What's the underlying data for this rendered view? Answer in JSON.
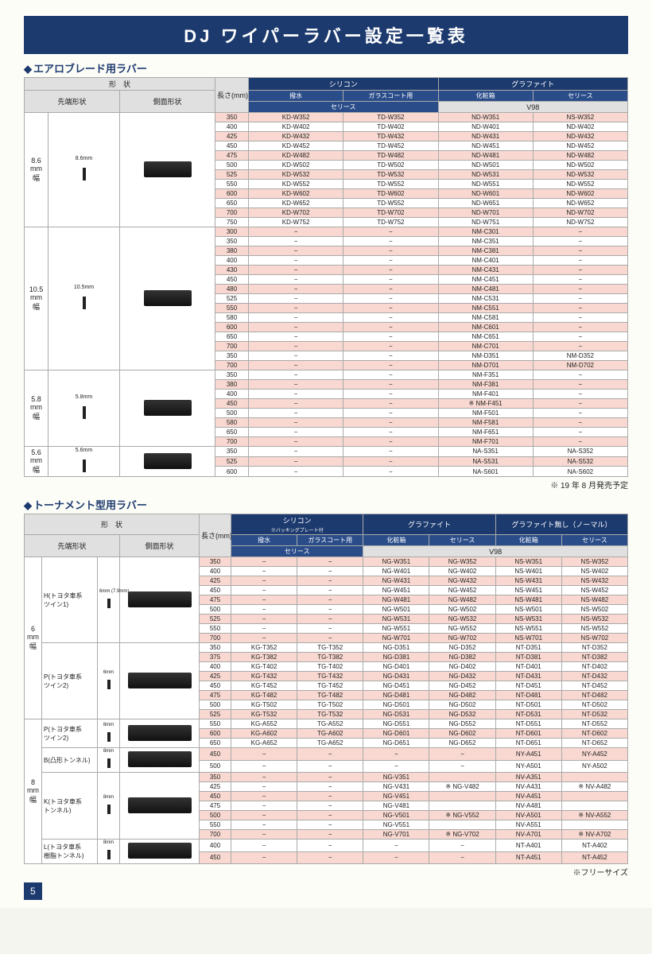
{
  "title": "DJ  ワイパーラバー設定一覧表",
  "section1": {
    "heading": "エアロブレード用ラバー",
    "topHeaders": {
      "shape": "形　状",
      "silicone": "シリコン",
      "graphite": "グラファイト"
    },
    "sub1": {
      "tip": "先端形状",
      "side": "側面形状",
      "len": "長さ(mm)",
      "repel": "撥水",
      "glass": "ガラスコート用",
      "box": "化粧箱",
      "series2": "セリース"
    },
    "sub2": {
      "series": "セリース",
      "v98": "V98"
    },
    "groups": [
      {
        "label": "8.6\nmm\n幅",
        "dim": "8.6mm"
      },
      {
        "label": "10.5\nmm\n幅",
        "dim": "10.5mm"
      },
      {
        "label": "5.8\nmm\n幅",
        "dim": "5.8mm"
      },
      {
        "label": "5.6\nmm\n幅",
        "dim": "5.6mm"
      }
    ],
    "rows": [
      {
        "g": 0,
        "len": "350",
        "c": [
          "KD-W352",
          "TD-W352",
          "ND-W351",
          "NS-W352"
        ],
        "p": 1
      },
      {
        "g": 0,
        "len": "400",
        "c": [
          "KD-W402",
          "TD-W402",
          "ND-W401",
          "ND-W402"
        ],
        "p": 0
      },
      {
        "g": 0,
        "len": "425",
        "c": [
          "KD-W432",
          "TD-W432",
          "ND-W431",
          "ND-W432"
        ],
        "p": 1
      },
      {
        "g": 0,
        "len": "450",
        "c": [
          "KD-W452",
          "TD-W452",
          "ND-W451",
          "ND-W452"
        ],
        "p": 0
      },
      {
        "g": 0,
        "len": "475",
        "c": [
          "KD-W482",
          "TD-W482",
          "ND-W481",
          "ND-W482"
        ],
        "p": 1
      },
      {
        "g": 0,
        "len": "500",
        "c": [
          "KD-W502",
          "TD-W502",
          "ND-W501",
          "ND-W502"
        ],
        "p": 0
      },
      {
        "g": 0,
        "len": "525",
        "c": [
          "KD-W532",
          "TD-W532",
          "ND-W531",
          "ND-W532"
        ],
        "p": 1
      },
      {
        "g": 0,
        "len": "550",
        "c": [
          "KD-W552",
          "TD-W552",
          "ND-W551",
          "ND-W552"
        ],
        "p": 0
      },
      {
        "g": 0,
        "len": "600",
        "c": [
          "KD-W602",
          "TD-W602",
          "ND-W601",
          "ND-W602"
        ],
        "p": 1
      },
      {
        "g": 0,
        "len": "650",
        "c": [
          "KD-W652",
          "TD-W552",
          "ND-W651",
          "ND-W652"
        ],
        "p": 0
      },
      {
        "g": 0,
        "len": "700",
        "c": [
          "KD-W702",
          "TD-W702",
          "ND-W701",
          "ND-W702"
        ],
        "p": 1
      },
      {
        "g": 0,
        "len": "750",
        "c": [
          "KD-W752",
          "TD-W752",
          "ND-W751",
          "ND-W752"
        ],
        "p": 0
      },
      {
        "g": 1,
        "len": "300",
        "c": [
          "−",
          "−",
          "NM-C301",
          "−"
        ],
        "p": 1
      },
      {
        "g": 1,
        "len": "350",
        "c": [
          "−",
          "−",
          "NM-C351",
          "−"
        ],
        "p": 0
      },
      {
        "g": 1,
        "len": "380",
        "c": [
          "−",
          "−",
          "NM-C381",
          "−"
        ],
        "p": 1
      },
      {
        "g": 1,
        "len": "400",
        "c": [
          "−",
          "−",
          "NM-C401",
          "−"
        ],
        "p": 0
      },
      {
        "g": 1,
        "len": "430",
        "c": [
          "−",
          "−",
          "NM-C431",
          "−"
        ],
        "p": 1
      },
      {
        "g": 1,
        "len": "450",
        "c": [
          "−",
          "−",
          "NM-C451",
          "−"
        ],
        "p": 0
      },
      {
        "g": 1,
        "len": "480",
        "c": [
          "−",
          "−",
          "NM-C481",
          "−"
        ],
        "p": 1
      },
      {
        "g": 1,
        "len": "525",
        "c": [
          "−",
          "−",
          "NM-C531",
          "−"
        ],
        "p": 0
      },
      {
        "g": 1,
        "len": "550",
        "c": [
          "−",
          "−",
          "NM-C551",
          "−"
        ],
        "p": 1
      },
      {
        "g": 1,
        "len": "580",
        "c": [
          "−",
          "−",
          "NM-C581",
          "−"
        ],
        "p": 0
      },
      {
        "g": 1,
        "len": "600",
        "c": [
          "−",
          "−",
          "NM-C601",
          "−"
        ],
        "p": 1
      },
      {
        "g": 1,
        "len": "650",
        "c": [
          "−",
          "−",
          "NM-C651",
          "−"
        ],
        "p": 0
      },
      {
        "g": 1,
        "len": "700",
        "c": [
          "−",
          "−",
          "NM-C701",
          "−"
        ],
        "p": 1
      },
      {
        "g": 1,
        "len": "350",
        "c": [
          "−",
          "−",
          "NM-D351",
          "NM-D352"
        ],
        "p": 0
      },
      {
        "g": 1,
        "len": "700",
        "c": [
          "−",
          "−",
          "NM-D701",
          "NM-D702"
        ],
        "p": 1
      },
      {
        "g": 2,
        "len": "350",
        "c": [
          "−",
          "−",
          "NM-F351",
          "−"
        ],
        "p": 0
      },
      {
        "g": 2,
        "len": "380",
        "c": [
          "−",
          "−",
          "NM-F381",
          "−"
        ],
        "p": 1
      },
      {
        "g": 2,
        "len": "400",
        "c": [
          "−",
          "−",
          "NM-F401",
          "−"
        ],
        "p": 0
      },
      {
        "g": 2,
        "len": "450",
        "c": [
          "−",
          "−",
          "※ NM-F451",
          "−"
        ],
        "p": 1
      },
      {
        "g": 2,
        "len": "500",
        "c": [
          "−",
          "−",
          "NM-F501",
          "−"
        ],
        "p": 0
      },
      {
        "g": 2,
        "len": "580",
        "c": [
          "−",
          "−",
          "NM-F581",
          "−"
        ],
        "p": 1
      },
      {
        "g": 2,
        "len": "650",
        "c": [
          "−",
          "−",
          "NM-F651",
          "−"
        ],
        "p": 0
      },
      {
        "g": 2,
        "len": "700",
        "c": [
          "−",
          "−",
          "NM-F701",
          "−"
        ],
        "p": 1
      },
      {
        "g": 3,
        "len": "350",
        "c": [
          "−",
          "−",
          "NA-S351",
          "NA-S352"
        ],
        "p": 0
      },
      {
        "g": 3,
        "len": "525",
        "c": [
          "−",
          "−",
          "NA-S531",
          "NA-S532"
        ],
        "p": 1
      },
      {
        "g": 3,
        "len": "600",
        "c": [
          "−",
          "−",
          "NA-S601",
          "NA-S602"
        ],
        "p": 0
      }
    ],
    "note": "※ 19 年 8 月発売予定"
  },
  "section2": {
    "heading": "トーナメント型用ラバー",
    "topHeaders": {
      "shape": "形　状",
      "silicone": "シリコン",
      "siliconeSub": "※バッキングプレート付",
      "graphite": "グラファイト",
      "normal": "グラファイト無し（ノーマル）"
    },
    "sub1": {
      "tip": "先端形状",
      "side": "側面形状",
      "len": "長さ(mm)",
      "repel": "撥水",
      "glass": "ガラスコート用",
      "box": "化粧箱",
      "series": "セリース",
      "box2": "化粧箱",
      "series2": "セリース"
    },
    "sub2": {
      "series": "セリース",
      "v98": "V98"
    },
    "groups6": [
      {
        "name": "H(トヨタ車系\nツイン1)",
        "dim": "6mm\n(7.9mm)"
      },
      {
        "name": "P(トヨタ車系\nツイン2)",
        "dim": "6mm"
      }
    ],
    "groups8": [
      {
        "name": "P(トヨタ車系\nツイン2)",
        "dim": "8mm"
      },
      {
        "name": "B(凸形トンネル)",
        "dim": "8mm"
      },
      {
        "name": "K(トヨタ車系\nトンネル)",
        "dim": "8mm"
      },
      {
        "name": "L(トヨタ車系\n樹脂トンネル)",
        "dim": "8mm"
      }
    ],
    "width6": "6\nmm\n幅",
    "width8": "8\nmm\n幅",
    "rows": [
      {
        "g": "6H",
        "len": "350",
        "c": [
          "−",
          "−",
          "NG-W351",
          "NG-W352",
          "NS-W351",
          "NS-W352"
        ],
        "p": 1
      },
      {
        "g": "6H",
        "len": "400",
        "c": [
          "−",
          "−",
          "NG-W401",
          "NG-W402",
          "NS-W401",
          "NS-W402"
        ],
        "p": 0
      },
      {
        "g": "6H",
        "len": "425",
        "c": [
          "−",
          "−",
          "NG-W431",
          "NG-W432",
          "NS-W431",
          "NS-W432"
        ],
        "p": 1
      },
      {
        "g": "6H",
        "len": "450",
        "c": [
          "−",
          "−",
          "NG-W451",
          "NG-W452",
          "NS-W451",
          "NS-W452"
        ],
        "p": 0
      },
      {
        "g": "6H",
        "len": "475",
        "c": [
          "−",
          "−",
          "NG-W481",
          "NG-W482",
          "NS-W481",
          "NS-W482"
        ],
        "p": 1
      },
      {
        "g": "6H",
        "len": "500",
        "c": [
          "−",
          "−",
          "NG-W501",
          "NG-W502",
          "NS-W501",
          "NS-W502"
        ],
        "p": 0
      },
      {
        "g": "6H",
        "len": "525",
        "c": [
          "−",
          "−",
          "NG-W531",
          "NG-W532",
          "NS-W531",
          "NS-W532"
        ],
        "p": 1
      },
      {
        "g": "6H",
        "len": "550",
        "c": [
          "−",
          "−",
          "NG-W551",
          "NG-W552",
          "NS-W551",
          "NS-W552"
        ],
        "p": 0
      },
      {
        "g": "6H",
        "len": "700",
        "c": [
          "−",
          "−",
          "NG-W701",
          "NG-W702",
          "NS-W701",
          "NS-W702"
        ],
        "p": 1
      },
      {
        "g": "6P",
        "len": "350",
        "c": [
          "KG-T352",
          "TG-T352",
          "NG-D351",
          "NG-D352",
          "NT-D351",
          "NT-D352"
        ],
        "p": 0
      },
      {
        "g": "6P",
        "len": "375",
        "c": [
          "KG-T382",
          "TG-T382",
          "NG-D381",
          "NG-D382",
          "NT-D381",
          "NT-D382"
        ],
        "p": 1
      },
      {
        "g": "6P",
        "len": "400",
        "c": [
          "KG-T402",
          "TG-T402",
          "NG-D401",
          "NG-D402",
          "NT-D401",
          "NT-D402"
        ],
        "p": 0
      },
      {
        "g": "6P",
        "len": "425",
        "c": [
          "KG-T432",
          "TG-T432",
          "NG-D431",
          "NG-D432",
          "NT-D431",
          "NT-D432"
        ],
        "p": 1
      },
      {
        "g": "6P",
        "len": "450",
        "c": [
          "KG-T452",
          "TG-T452",
          "NG-D451",
          "NG-D452",
          "NT-D451",
          "NT-D452"
        ],
        "p": 0
      },
      {
        "g": "6P",
        "len": "475",
        "c": [
          "KG-T482",
          "TG-T482",
          "NG-D481",
          "NG-D482",
          "NT-D481",
          "NT-D482"
        ],
        "p": 1
      },
      {
        "g": "6P",
        "len": "500",
        "c": [
          "KG-T502",
          "TG-T502",
          "NG-D501",
          "NG-D502",
          "NT-D501",
          "NT-D502"
        ],
        "p": 0
      },
      {
        "g": "6P",
        "len": "525",
        "c": [
          "KG-T532",
          "TG-T532",
          "NG-D531",
          "NG-D532",
          "NT-D531",
          "NT-D532"
        ],
        "p": 1
      },
      {
        "g": "8P",
        "len": "550",
        "c": [
          "KG-A552",
          "TG-A552",
          "NG-D551",
          "NG-D552",
          "NT-D551",
          "NT-D552"
        ],
        "p": 0
      },
      {
        "g": "8P",
        "len": "600",
        "c": [
          "KG-A602",
          "TG-A602",
          "NG-D601",
          "NG-D602",
          "NT-D601",
          "NT-D602"
        ],
        "p": 1
      },
      {
        "g": "8P",
        "len": "650",
        "c": [
          "KG-A652",
          "TG-A652",
          "NG-D651",
          "NG-D652",
          "NT-D651",
          "NT-D652"
        ],
        "p": 0
      },
      {
        "g": "8B",
        "len": "450",
        "c": [
          "−",
          "−",
          "−",
          "−",
          "NY-A451",
          "NY-A452"
        ],
        "p": 1
      },
      {
        "g": "8B",
        "len": "500",
        "c": [
          "−",
          "−",
          "−",
          "−",
          "NY-A501",
          "NY-A502"
        ],
        "p": 0
      },
      {
        "g": "8K",
        "len": "350",
        "c": [
          "−",
          "−",
          "NG-V351",
          "",
          "NV-A351",
          ""
        ],
        "p": 1
      },
      {
        "g": "8K",
        "len": "425",
        "c": [
          "−",
          "−",
          "NG-V431",
          "※ NG-V482",
          "NV-A431",
          "※ NV-A482"
        ],
        "p": 0
      },
      {
        "g": "8K",
        "len": "450",
        "c": [
          "−",
          "−",
          "NG-V451",
          "",
          "NV-A451",
          ""
        ],
        "p": 1
      },
      {
        "g": "8K",
        "len": "475",
        "c": [
          "−",
          "−",
          "NG-V481",
          "",
          "NV-A481",
          ""
        ],
        "p": 0
      },
      {
        "g": "8K",
        "len": "500",
        "c": [
          "−",
          "−",
          "NG-V501",
          "※ NG-V552",
          "NV-A501",
          "※ NV-A552"
        ],
        "p": 1
      },
      {
        "g": "8K",
        "len": "550",
        "c": [
          "−",
          "−",
          "NG-V551",
          "",
          "NV-A551",
          ""
        ],
        "p": 0
      },
      {
        "g": "8K",
        "len": "700",
        "c": [
          "−",
          "−",
          "NG-V701",
          "※ NG-V702",
          "NV-A701",
          "※ NV-A702"
        ],
        "p": 1
      },
      {
        "g": "8L",
        "len": "400",
        "c": [
          "−",
          "−",
          "−",
          "−",
          "NT-A401",
          "NT-A402"
        ],
        "p": 0
      },
      {
        "g": "8L",
        "len": "450",
        "c": [
          "−",
          "−",
          "−",
          "−",
          "NT-A451",
          "NT-A452"
        ],
        "p": 1
      }
    ],
    "note": "※フリーサイズ"
  },
  "pageNumber": "5",
  "colors": {
    "navy": "#1c3a6e",
    "pink": "#f8d8d0",
    "white": "#ffffff"
  }
}
